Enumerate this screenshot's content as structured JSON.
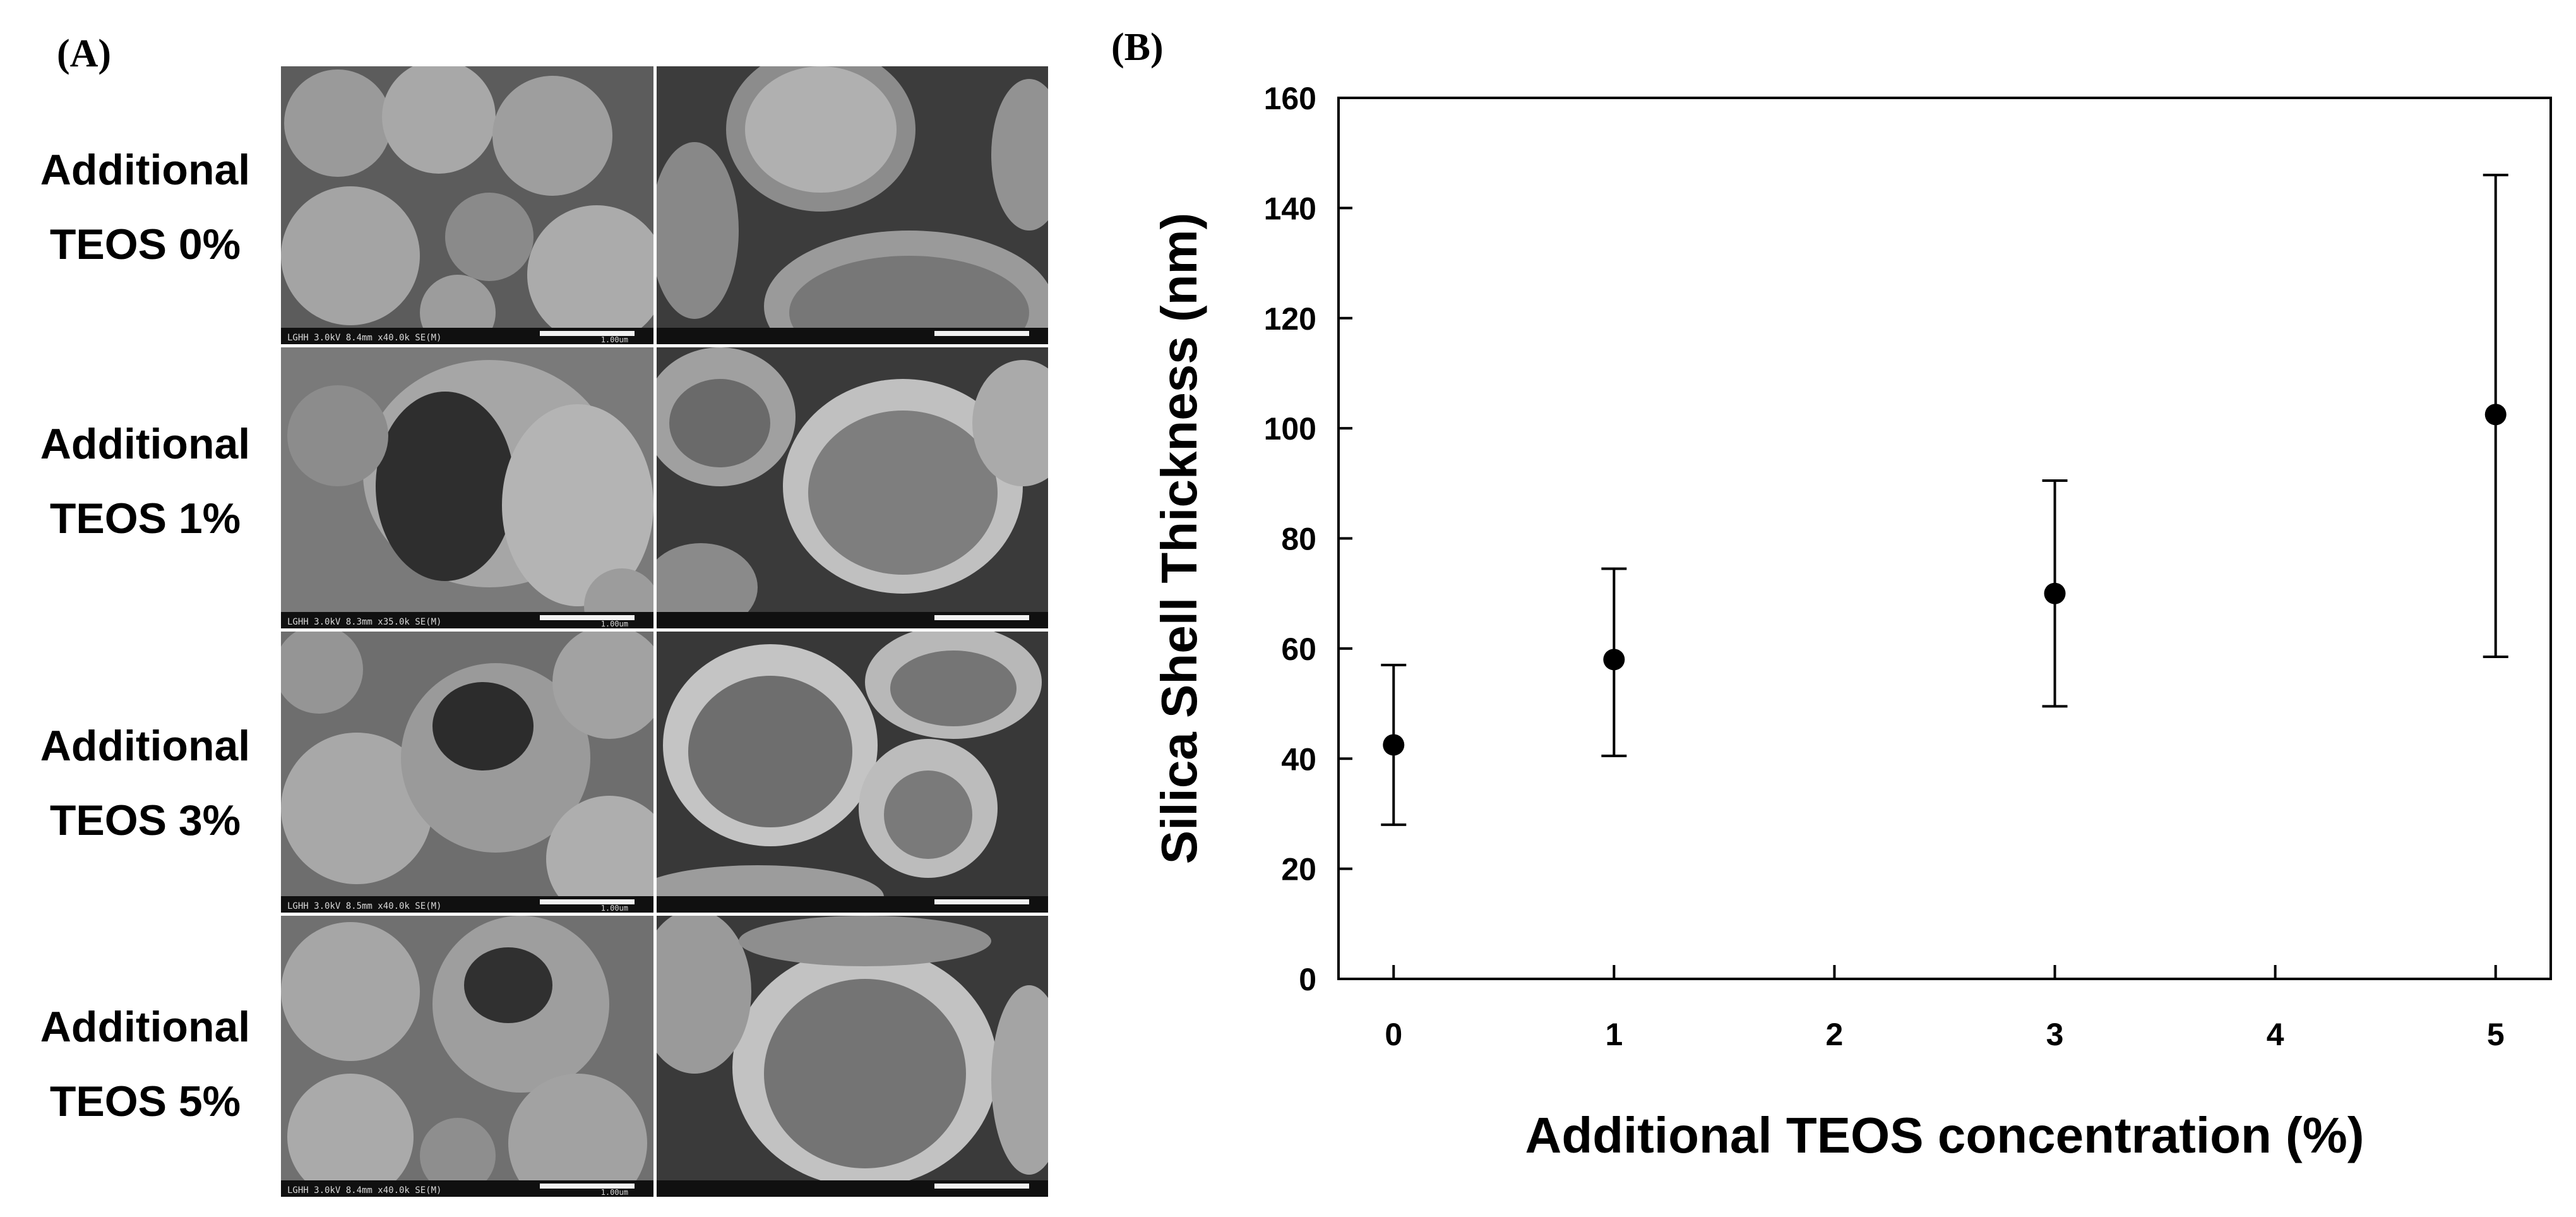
{
  "panel_a": {
    "label": "(A)",
    "rows": [
      {
        "line1": "Additional",
        "line2": "TEOS 0%",
        "left_bar": "LGHH 3.0kV 8.4mm x40.0k SE(M)",
        "left_scale": "1.00um"
      },
      {
        "line1": "Additional",
        "line2": "TEOS 1%",
        "left_bar": "LGHH 3.0kV 8.3mm x35.0k SE(M)",
        "left_scale": "1.00um"
      },
      {
        "line1": "Additional",
        "line2": "TEOS 3%",
        "left_bar": "LGHH 3.0kV 8.5mm x40.0k SE(M)",
        "left_scale": "1.00um"
      },
      {
        "line1": "Additional",
        "line2": "TEOS 5%",
        "left_bar": "LGHH 3.0kV 8.4mm x40.0k SE(M)",
        "left_scale": "1.00um"
      }
    ]
  },
  "panel_b": {
    "label": "(B)"
  },
  "chart_data": {
    "type": "scatter",
    "title": "",
    "xlabel": "Additional TEOS concentration (%)",
    "ylabel": "Silica Shell Thickness (nm)",
    "xlim": [
      -0.25,
      5.25
    ],
    "ylim": [
      0,
      160
    ],
    "xticks": [
      0,
      1,
      2,
      3,
      4,
      5
    ],
    "yticks": [
      0,
      20,
      40,
      60,
      80,
      100,
      120,
      140,
      160
    ],
    "grid": false,
    "series": [
      {
        "x": [
          0,
          1,
          3,
          5
        ],
        "y": [
          42.5,
          58,
          70,
          102.5
        ],
        "err_low": [
          28,
          40.5,
          49.5,
          58.5
        ],
        "err_high": [
          57,
          74.5,
          90.5,
          146
        ],
        "color": "#000000",
        "marker": "circle"
      }
    ]
  }
}
